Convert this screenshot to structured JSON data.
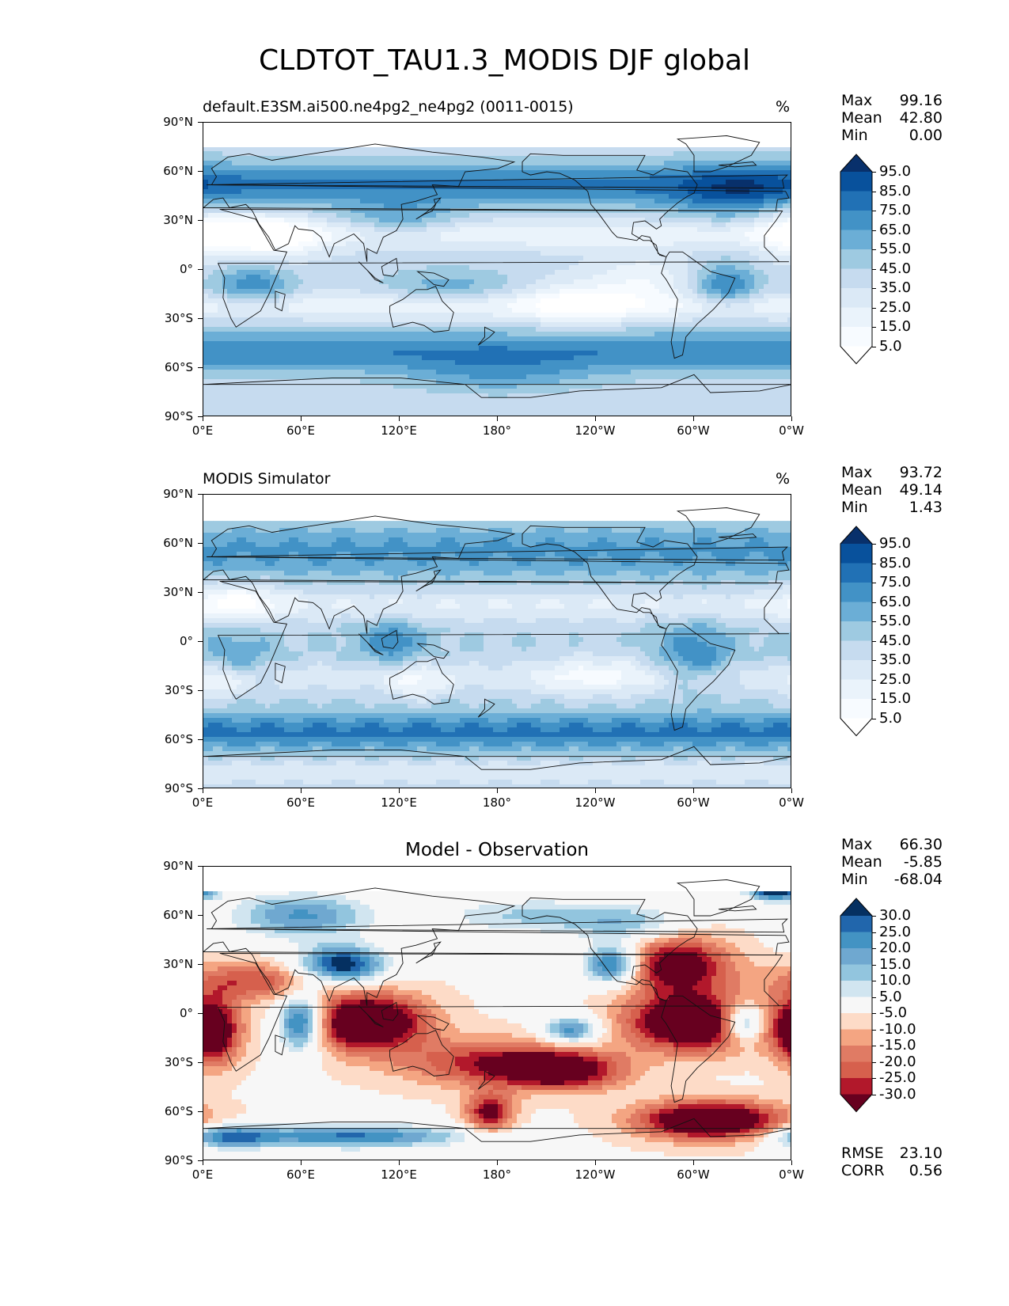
{
  "title": "CLDTOT_TAU1.3_MODIS DJF global",
  "axes": {
    "lat_ticks": [
      "90°N",
      "60°N",
      "30°N",
      "0°",
      "30°S",
      "60°S",
      "90°S"
    ],
    "lon_ticks": [
      "0°E",
      "60°E",
      "120°E",
      "180°",
      "120°W",
      "60°W",
      "0°W"
    ]
  },
  "panels": [
    {
      "id": "model",
      "title": "default.E3SM.ai500.ne4pg2_ne4pg2 (0011-0015)",
      "units": "%",
      "stats": [
        {
          "label": "Max",
          "value": "99.16"
        },
        {
          "label": "Mean",
          "value": "42.80"
        },
        {
          "label": "Min",
          "value": "0.00"
        }
      ],
      "colorbar": {
        "labels": [
          "95.0",
          "85.0",
          "75.0",
          "65.0",
          "55.0",
          "45.0",
          "35.0",
          "25.0",
          "15.0",
          "5.0"
        ],
        "colors": [
          "#08306b",
          "#08519c",
          "#2171b5",
          "#4292c6",
          "#6baed6",
          "#9ecae1",
          "#c6dbef",
          "#dbe9f6",
          "#eaf3fb",
          "#f7fbff",
          "#ffffff"
        ]
      }
    },
    {
      "id": "obs",
      "title": "MODIS Simulator",
      "units": "%",
      "stats": [
        {
          "label": "Max",
          "value": "93.72"
        },
        {
          "label": "Mean",
          "value": "49.14"
        },
        {
          "label": "Min",
          "value": "1.43"
        }
      ],
      "colorbar": {
        "labels": [
          "95.0",
          "85.0",
          "75.0",
          "65.0",
          "55.0",
          "45.0",
          "35.0",
          "25.0",
          "15.0",
          "5.0"
        ],
        "colors": [
          "#08306b",
          "#08519c",
          "#2171b5",
          "#4292c6",
          "#6baed6",
          "#9ecae1",
          "#c6dbef",
          "#dbe9f6",
          "#eaf3fb",
          "#f7fbff",
          "#ffffff"
        ]
      }
    },
    {
      "id": "diff",
      "title": "Model - Observation",
      "units": "",
      "stats": [
        {
          "label": "Max",
          "value": "66.30"
        },
        {
          "label": "Mean",
          "value": "-5.85"
        },
        {
          "label": "Min",
          "value": "-68.04"
        }
      ],
      "extra_stats": [
        {
          "label": "RMSE",
          "value": "23.10"
        },
        {
          "label": "CORR",
          "value": "0.56"
        }
      ],
      "colorbar": {
        "labels": [
          "30.0",
          "25.0",
          "20.0",
          "15.0",
          "10.0",
          "5.0",
          "-5.0",
          "-10.0",
          "-15.0",
          "-20.0",
          "-25.0",
          "-30.0"
        ],
        "colors": [
          "#053061",
          "#2166ac",
          "#4393c3",
          "#6fa8d0",
          "#92c5de",
          "#d1e5f0",
          "#f7f7f7",
          "#fddbc7",
          "#f4a582",
          "#e07b64",
          "#d6604d",
          "#b2182b",
          "#67001f"
        ]
      }
    }
  ]
}
